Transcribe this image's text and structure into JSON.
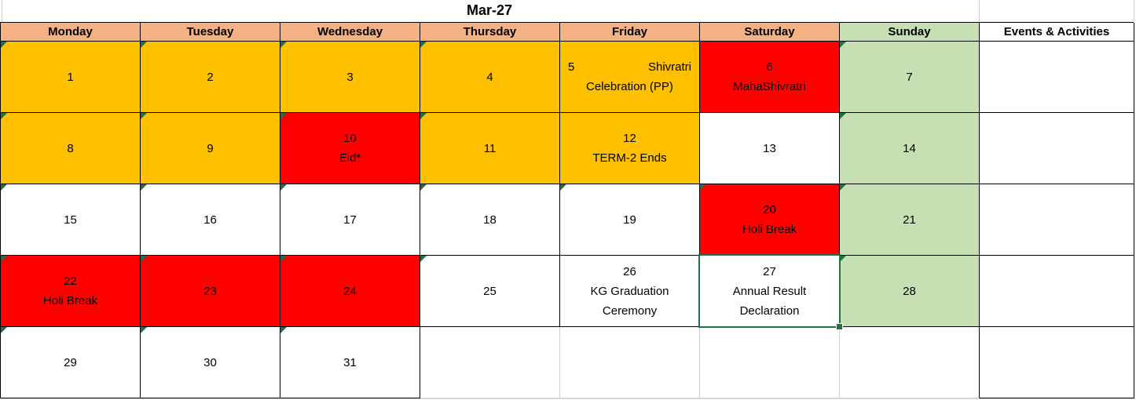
{
  "title": "Mar-27",
  "columns": [
    {
      "label": "Monday",
      "style": "weekday"
    },
    {
      "label": "Tuesday",
      "style": "weekday"
    },
    {
      "label": "Wednesday",
      "style": "weekday"
    },
    {
      "label": "Thursday",
      "style": "weekday"
    },
    {
      "label": "Friday",
      "style": "weekday"
    },
    {
      "label": "Saturday",
      "style": "weekday"
    },
    {
      "label": "Sunday",
      "style": "sunday"
    },
    {
      "label": "Events & Activities",
      "style": "events"
    }
  ],
  "weeks": [
    [
      {
        "day": "1",
        "fill": "yellow",
        "indicator": true
      },
      {
        "day": "2",
        "fill": "yellow",
        "indicator": true
      },
      {
        "day": "3",
        "fill": "yellow",
        "indicator": true
      },
      {
        "day": "4",
        "fill": "yellow",
        "indicator": true
      },
      {
        "day": "5",
        "fill": "yellow",
        "layout": "split",
        "event_lines": [
          "Shivratri",
          "Celebration (PP)"
        ]
      },
      {
        "day": "6",
        "fill": "red",
        "event_lines": [
          "MahaShivratri"
        ]
      },
      {
        "day": "7",
        "fill": "green",
        "indicator": true
      }
    ],
    [
      {
        "day": "8",
        "fill": "yellow",
        "indicator": true
      },
      {
        "day": "9",
        "fill": "yellow",
        "indicator": true
      },
      {
        "day": "10",
        "fill": "red",
        "indicator": true,
        "event_lines": [
          "Eid*"
        ]
      },
      {
        "day": "11",
        "fill": "yellow",
        "indicator": true
      },
      {
        "day": "12",
        "fill": "yellow",
        "event_lines": [
          "TERM-2 Ends"
        ]
      },
      {
        "day": "13",
        "fill": "white"
      },
      {
        "day": "14",
        "fill": "green",
        "indicator": true
      }
    ],
    [
      {
        "day": "15",
        "fill": "white",
        "indicator": true
      },
      {
        "day": "16",
        "fill": "white",
        "indicator": true
      },
      {
        "day": "17",
        "fill": "white",
        "indicator": true
      },
      {
        "day": "18",
        "fill": "white",
        "indicator": true
      },
      {
        "day": "19",
        "fill": "white",
        "indicator": true
      },
      {
        "day": "20",
        "fill": "red",
        "indicator": true,
        "event_lines": [
          "Holi Break"
        ]
      },
      {
        "day": "21",
        "fill": "green",
        "indicator": true
      }
    ],
    [
      {
        "day": "22",
        "fill": "red",
        "indicator": true,
        "event_lines": [
          "Holi Break"
        ]
      },
      {
        "day": "23",
        "fill": "red",
        "indicator": true
      },
      {
        "day": "24",
        "fill": "red",
        "indicator": true
      },
      {
        "day": "25",
        "fill": "white",
        "indicator": true
      },
      {
        "day": "26",
        "fill": "white",
        "event_lines": [
          "KG Graduation",
          "Ceremony"
        ]
      },
      {
        "day": "27",
        "fill": "white",
        "selected": true,
        "event_lines": [
          "Annual Result",
          "Declaration"
        ]
      },
      {
        "day": "28",
        "fill": "green",
        "indicator": true
      }
    ],
    [
      {
        "day": "29",
        "fill": "white",
        "indicator": true
      },
      {
        "day": "30",
        "fill": "white",
        "indicator": true
      },
      {
        "day": "31",
        "fill": "white",
        "indicator": true
      },
      {
        "day": "",
        "fill": "plain"
      },
      {
        "day": "",
        "fill": "plain"
      },
      {
        "day": "",
        "fill": "plain"
      },
      {
        "day": "",
        "fill": "plain"
      }
    ]
  ],
  "events_rows": [
    "",
    "",
    "",
    "",
    ""
  ],
  "colors": {
    "header_orange": "#F4B183",
    "holiday_yellow": "#FFC000",
    "festival_red": "#FF0000",
    "sunday_green": "#C6E0B4",
    "selection_green": "#217346",
    "indicator_green": "#1E7145",
    "border_black": "#000000",
    "gridline_gray": "#D0D0D0"
  }
}
